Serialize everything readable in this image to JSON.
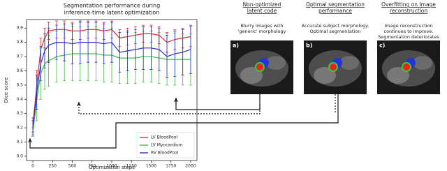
{
  "chart_data": {
    "type": "line",
    "title": [
      "Segmentation performance during",
      "inference-time latent optimization"
    ],
    "xlabel": "Optimization steps",
    "ylabel": "Dice score",
    "x": [
      0,
      50,
      100,
      150,
      200,
      300,
      400,
      500,
      600,
      700,
      800,
      900,
      1000,
      1100,
      1200,
      1300,
      1400,
      1500,
      1600,
      1700,
      1800,
      1900,
      2000
    ],
    "series": [
      {
        "name": "LV BloodPool",
        "color": "#e8272a",
        "values": [
          0.22,
          0.5,
          0.75,
          0.83,
          0.88,
          0.89,
          0.89,
          0.88,
          0.88,
          0.89,
          0.89,
          0.88,
          0.89,
          0.83,
          0.84,
          0.85,
          0.86,
          0.86,
          0.85,
          0.8,
          0.82,
          0.83,
          0.84
        ],
        "errors": [
          0.05,
          0.1,
          0.08,
          0.07,
          0.06,
          0.06,
          0.06,
          0.06,
          0.06,
          0.06,
          0.06,
          0.06,
          0.06,
          0.06,
          0.06,
          0.06,
          0.06,
          0.06,
          0.06,
          0.07,
          0.07,
          0.07,
          0.07
        ]
      },
      {
        "name": "LV Myocardium",
        "color": "#3fbf3f",
        "values": [
          0.17,
          0.4,
          0.58,
          0.65,
          0.67,
          0.7,
          0.71,
          0.72,
          0.72,
          0.72,
          0.72,
          0.71,
          0.71,
          0.69,
          0.69,
          0.69,
          0.7,
          0.7,
          0.69,
          0.68,
          0.68,
          0.68,
          0.68
        ],
        "errors": [
          0.03,
          0.15,
          0.18,
          0.18,
          0.18,
          0.18,
          0.18,
          0.19,
          0.19,
          0.19,
          0.19,
          0.19,
          0.19,
          0.18,
          0.18,
          0.18,
          0.18,
          0.18,
          0.18,
          0.18,
          0.18,
          0.18,
          0.18
        ]
      },
      {
        "name": "RV BloodPool",
        "color": "#2c2fcc",
        "values": [
          0.2,
          0.45,
          0.65,
          0.74,
          0.78,
          0.8,
          0.8,
          0.79,
          0.8,
          0.8,
          0.8,
          0.79,
          0.8,
          0.73,
          0.74,
          0.75,
          0.76,
          0.76,
          0.75,
          0.7,
          0.72,
          0.73,
          0.75
        ],
        "errors": [
          0.05,
          0.12,
          0.12,
          0.12,
          0.12,
          0.12,
          0.13,
          0.14,
          0.15,
          0.14,
          0.14,
          0.14,
          0.14,
          0.14,
          0.14,
          0.14,
          0.15,
          0.15,
          0.15,
          0.15,
          0.16,
          0.16,
          0.17
        ]
      }
    ],
    "xlim": [
      -80,
      2080
    ],
    "xticks": [
      0,
      250,
      500,
      750,
      1000,
      1250,
      1500,
      1750,
      2000
    ],
    "ylim": [
      -0.03,
      0.96
    ],
    "yticks": [
      {
        "value": 0,
        "label": "0.0"
      },
      0.1,
      0.2,
      0.3,
      0.4,
      0.5,
      0.6,
      0.7,
      0.8,
      0.9
    ],
    "legend": "lower right"
  },
  "panels": [
    {
      "title": [
        "Non-optimized",
        "latent code"
      ],
      "description": [
        "Blurry images with",
        "'generic' morphology"
      ],
      "label": "a)"
    },
    {
      "title": [
        "Optimal segmentation",
        "performance"
      ],
      "description": [
        "Accurate subject morphology.",
        "Optimal segmentation"
      ],
      "label": "b)"
    },
    {
      "title": [
        "Overfitting on Image",
        "reconstruction"
      ],
      "description": [
        "Image reconstruction",
        "continues to improve.",
        "Segmentation deteriorates"
      ],
      "label": "c)"
    }
  ]
}
